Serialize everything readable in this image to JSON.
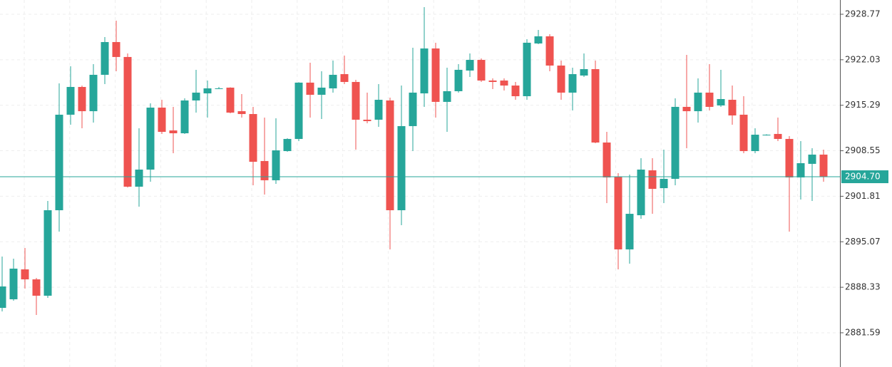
{
  "chart_data": {
    "type": "candlestick",
    "open": [
      2885.28,
      2886.55,
      2890.98,
      2889.5,
      2887.08,
      2899.74,
      2913.89,
      2918.0,
      2914.41,
      2919.8,
      2924.65,
      2922.44,
      2903.23,
      2905.76,
      2914.94,
      2911.56,
      2911.14,
      2916.0,
      2917.05,
      2917.69,
      2917.9,
      2914.41,
      2913.99,
      2907.03,
      2904.18,
      2908.5,
      2910.3,
      2918.64,
      2916.84,
      2917.79,
      2919.9,
      2918.74,
      2913.15,
      2913.15,
      2916.0,
      2899.74,
      2912.2,
      2917.05,
      2923.7,
      2915.79,
      2917.37,
      2920.43,
      2922.01,
      2918.95,
      2918.95,
      2918.21,
      2916.63,
      2924.44,
      2925.5,
      2921.17,
      2917.16,
      2919.69,
      2920.64,
      2909.77,
      2904.7,
      2893.94,
      2899.0,
      2905.65,
      2903.01,
      2904.39,
      2915.05,
      2914.41,
      2917.16,
      2915.26,
      2916.1,
      2913.89,
      2908.5,
      2910.83,
      2911.04,
      2910.3,
      2904.6,
      2906.61,
      2907.98
    ],
    "high": [
      2892.88,
      2892.57,
      2894.15,
      2889.72,
      2901.11,
      2918.53,
      2921.06,
      2918.2,
      2921.38,
      2925.39,
      2927.82,
      2922.96,
      2911.88,
      2915.58,
      2916.1,
      2915.05,
      2916.31,
      2920.54,
      2918.95,
      2918.0,
      2917.95,
      2916.95,
      2915.05,
      2913.46,
      2913.36,
      2910.4,
      2918.7,
      2921.59,
      2920.32,
      2921.91,
      2922.65,
      2919.06,
      2917.16,
      2918.43,
      2916.42,
      2918.21,
      2923.81,
      2929.82,
      2924.55,
      2920.85,
      2921.38,
      2922.96,
      2922.22,
      2919.27,
      2919.27,
      2918.74,
      2925.07,
      2926.45,
      2925.81,
      2921.91,
      2920.85,
      2922.96,
      2921.91,
      2911.35,
      2905.23,
      2905.02,
      2907.45,
      2907.45,
      2908.71,
      2916.31,
      2922.75,
      2919.27,
      2921.38,
      2920.54,
      2918.21,
      2916.63,
      2911.88,
      2911.0,
      2913.46,
      2910.72,
      2909.98,
      2908.92,
      2908.71
    ],
    "low": [
      2884.75,
      2886.34,
      2888.13,
      2884.23,
      2886.76,
      2896.58,
      2912.41,
      2911.88,
      2912.73,
      2918.43,
      2920.32,
      2903.1,
      2900.27,
      2903.96,
      2911.04,
      2908.19,
      2911.04,
      2914.2,
      2913.46,
      2917.69,
      2914.1,
      2913.46,
      2903.44,
      2902.06,
      2903.65,
      2908.4,
      2909.98,
      2913.46,
      2913.25,
      2917.16,
      2918.43,
      2908.71,
      2912.62,
      2912.09,
      2893.94,
      2897.53,
      2908.5,
      2915.05,
      2913.46,
      2911.35,
      2917.16,
      2919.48,
      2918.74,
      2917.69,
      2917.48,
      2916.1,
      2916.1,
      2924.34,
      2920.32,
      2916.1,
      2914.52,
      2919.48,
      2909.67,
      2900.8,
      2890.98,
      2891.83,
      2898.48,
      2899.21,
      2900.8,
      2903.44,
      2908.92,
      2912.73,
      2914.52,
      2915.05,
      2912.41,
      2908.19,
      2908.19,
      2910.8,
      2909.98,
      2896.58,
      2901.33,
      2901.11,
      2903.96
    ],
    "close": [
      2888.45,
      2891.09,
      2889.5,
      2887.08,
      2899.74,
      2913.89,
      2918.0,
      2914.41,
      2919.8,
      2924.65,
      2922.44,
      2903.23,
      2905.76,
      2914.94,
      2911.35,
      2911.14,
      2916.0,
      2917.16,
      2917.79,
      2917.79,
      2914.2,
      2913.99,
      2906.92,
      2904.18,
      2908.61,
      2910.3,
      2918.64,
      2916.84,
      2917.9,
      2919.8,
      2918.74,
      2913.15,
      2912.94,
      2916.1,
      2899.74,
      2912.2,
      2917.16,
      2923.7,
      2915.79,
      2917.37,
      2920.54,
      2922.01,
      2918.95,
      2918.74,
      2918.21,
      2916.63,
      2924.55,
      2925.5,
      2921.17,
      2917.16,
      2919.9,
      2920.64,
      2909.77,
      2904.6,
      2893.94,
      2899.21,
      2905.76,
      2902.91,
      2904.39,
      2915.05,
      2914.41,
      2917.16,
      2915.05,
      2916.21,
      2913.78,
      2908.5,
      2910.93,
      2910.93,
      2910.3,
      2904.6,
      2906.71,
      2907.98,
      2904.7
    ],
    "up_color": "#26a69a",
    "down_color": "#ef5350",
    "ylim": [
      2876.52,
      2930.88
    ],
    "yticks": [
      2928.77,
      2922.03,
      2915.29,
      2908.55,
      2901.81,
      2895.07,
      2888.33,
      2881.59
    ],
    "last_price": {
      "value": 2904.7,
      "label": "2904.70"
    },
    "grid": true
  }
}
